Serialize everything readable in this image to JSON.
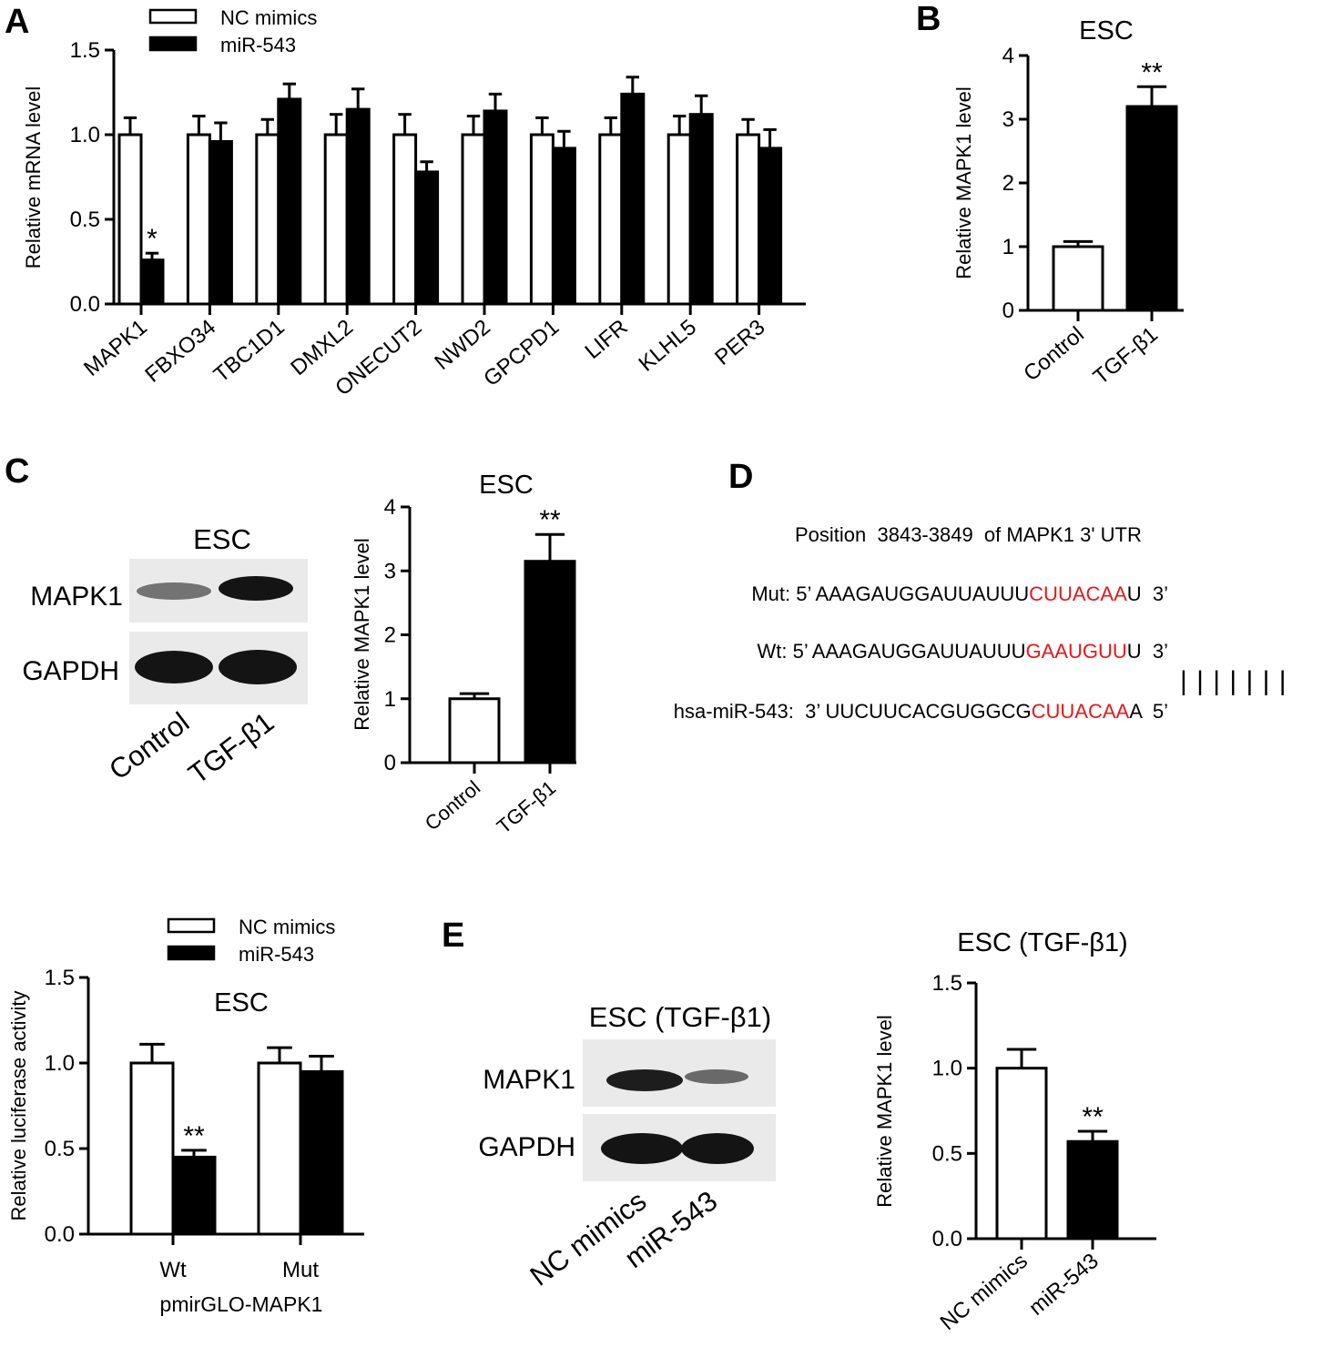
{
  "panel_letters": {
    "a": "A",
    "b": "B",
    "c": "C",
    "d": "D",
    "e": "E"
  },
  "colors": {
    "open_bar": "#ffffff",
    "filled_bar": "#000000",
    "seed_red": "#e8161b"
  },
  "chart_data": [
    {
      "id": "A",
      "type": "bar",
      "title": "",
      "ylabel": "Relative mRNA level",
      "xlabel": "",
      "ylim": [
        0,
        1.5
      ],
      "yticks": [
        "0.0",
        "0.5",
        "1.0",
        "1.5"
      ],
      "legend": "top-left",
      "categories": [
        "MAPK1",
        "FBXO34",
        "TBC1D1",
        "DMXL2",
        "ONECUT2",
        "NWD2",
        "GPCPD1",
        "LIFR",
        "KLHL5",
        "PER3"
      ],
      "series": [
        {
          "name": "NC mimics",
          "values": [
            1.0,
            1.0,
            1.0,
            1.0,
            1.0,
            1.0,
            1.0,
            1.0,
            1.0,
            1.0
          ],
          "errors": [
            0.1,
            0.11,
            0.09,
            0.12,
            0.12,
            0.11,
            0.1,
            0.1,
            0.11,
            0.09
          ]
        },
        {
          "name": "miR-543",
          "values": [
            0.26,
            0.96,
            1.21,
            1.15,
            0.78,
            1.14,
            0.92,
            1.24,
            1.12,
            0.92
          ],
          "errors": [
            0.04,
            0.11,
            0.09,
            0.12,
            0.06,
            0.1,
            0.1,
            0.1,
            0.11,
            0.11
          ]
        }
      ],
      "annotations": [
        {
          "category": "MAPK1",
          "series": 1,
          "text": "*"
        }
      ]
    },
    {
      "id": "B",
      "type": "bar",
      "title": "ESC",
      "ylabel": "Relative MAPK1 level",
      "xlabel": "",
      "ylim": [
        0,
        4
      ],
      "yticks": [
        "0",
        "1",
        "2",
        "3",
        "4"
      ],
      "categories": [
        "Control",
        "TGF-β1"
      ],
      "values": [
        1.0,
        3.2
      ],
      "errors": [
        0.08,
        0.31
      ],
      "annotations": [
        {
          "category": "TGF-β1",
          "text": "**"
        }
      ]
    },
    {
      "id": "C",
      "type": "bar",
      "title": "ESC",
      "ylabel": "Relative MAPK1 level",
      "xlabel": "",
      "ylim": [
        0,
        4
      ],
      "yticks": [
        "0",
        "1",
        "2",
        "3",
        "4"
      ],
      "categories": [
        "Control",
        "TGF-β1"
      ],
      "values": [
        1.0,
        3.15
      ],
      "errors": [
        0.08,
        0.42
      ],
      "annotations": [
        {
          "category": "TGF-β1",
          "text": "**"
        }
      ]
    },
    {
      "id": "D",
      "type": "bar",
      "title": "ESC",
      "ylabel": "Relative luciferase activity",
      "xlabel": "pmirGLO-MAPK1",
      "ylim": [
        0,
        1.5
      ],
      "yticks": [
        "0.0",
        "0.5",
        "1.0",
        "1.5"
      ],
      "legend": "top",
      "categories": [
        "Wt",
        "Mut"
      ],
      "series": [
        {
          "name": "NC mimics",
          "values": [
            1.0,
            1.0
          ],
          "errors": [
            0.11,
            0.09
          ]
        },
        {
          "name": "miR-543",
          "values": [
            0.45,
            0.95
          ],
          "errors": [
            0.04,
            0.09
          ]
        }
      ],
      "annotations": [
        {
          "category": "Wt",
          "series": 1,
          "text": "**"
        }
      ]
    },
    {
      "id": "E",
      "type": "bar",
      "title": "ESC (TGF-β1)",
      "ylabel": "Relative MAPK1 level",
      "xlabel": "",
      "ylim": [
        0,
        1.5
      ],
      "yticks": [
        "0.0",
        "0.5",
        "1.0",
        "1.5"
      ],
      "categories": [
        "NC mimics",
        "miR-543"
      ],
      "values": [
        1.0,
        0.57
      ],
      "errors": [
        0.11,
        0.06
      ],
      "annotations": [
        {
          "category": "miR-543",
          "text": "**"
        }
      ]
    }
  ],
  "blots": {
    "c": {
      "title": "ESC",
      "rows": [
        "MAPK1",
        "GAPDH"
      ],
      "lanes": [
        "Control",
        "TGF-β1"
      ],
      "mapk1_intensity": [
        0.45,
        0.95
      ]
    },
    "e": {
      "title": "ESC (TGF-β1)",
      "rows": [
        "MAPK1",
        "GAPDH"
      ],
      "lanes": [
        "NC mimics",
        "miR-543"
      ],
      "mapk1_intensity": [
        0.9,
        0.5
      ]
    }
  },
  "sequence": {
    "position": "Position  3843-3849  of MAPK1 3' UTR",
    "mut_label": "Mut:",
    "mut_prefix": "5’ AAAGAUGGAUUAUUU",
    "mut_seed": "CUUACAA",
    "mut_suffix": "U  3’",
    "wt_label": "Wt:",
    "wt_prefix": "5’ AAAGAUGGAUUAUUU",
    "wt_seed": "GAAUGUU",
    "wt_suffix": "U  3’",
    "mir_label": "hsa-miR-543:",
    "mir_prefix": "3’ UUCUUCACGUGGCG",
    "mir_seed": "CUUACAA",
    "mir_suffix": "A  5’",
    "pairing_lines": "| | | | | | |"
  }
}
